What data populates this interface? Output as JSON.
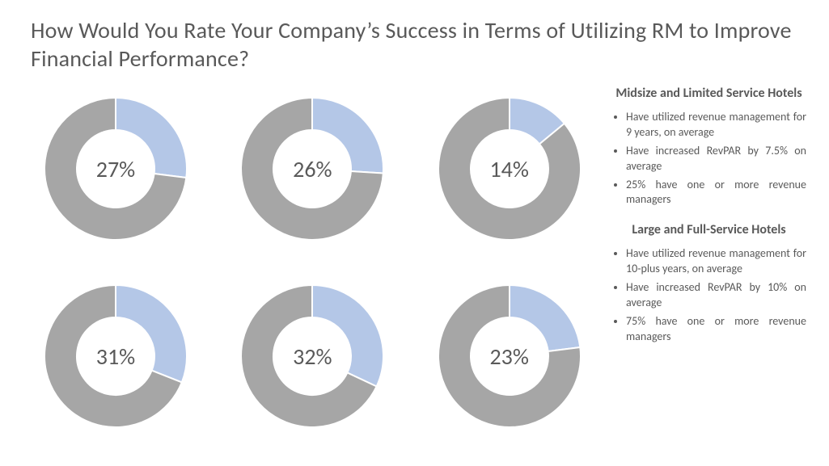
{
  "title": "How Would You Rate Your Company’s Success in Terms of Utilizing RM to Improve Financial Performance?",
  "chart_style": {
    "type": "donut",
    "segment_color": "#b4c7e7",
    "remainder_color": "#a6a6a6",
    "stroke_color": "#ffffff",
    "stroke_width": 2,
    "outer_radius": 88,
    "inner_radius": 48,
    "label_fontsize": 28,
    "label_color": "#595959",
    "background": "#ffffff",
    "start_angle_deg": 0
  },
  "charts": [
    {
      "value": 27,
      "label": "27%"
    },
    {
      "value": 26,
      "label": "26%"
    },
    {
      "value": 14,
      "label": "14%"
    },
    {
      "value": 31,
      "label": "31%"
    },
    {
      "value": 32,
      "label": "32%"
    },
    {
      "value": 23,
      "label": "23%"
    }
  ],
  "sidebar": {
    "section1": {
      "heading": "Midsize and Limited Service Hotels",
      "bullets": [
        "Have utilized revenue management for 9 years, on average",
        "Have increased RevPAR by 7.5% on average",
        "25% have one or more revenue managers"
      ]
    },
    "section2": {
      "heading": "Large and Full-Service Hotels",
      "bullets": [
        "Have utilized revenue management for 10-plus years, on average",
        "Have increased RevPAR by 10% on average",
        "75% have one or more revenue managers"
      ]
    }
  }
}
